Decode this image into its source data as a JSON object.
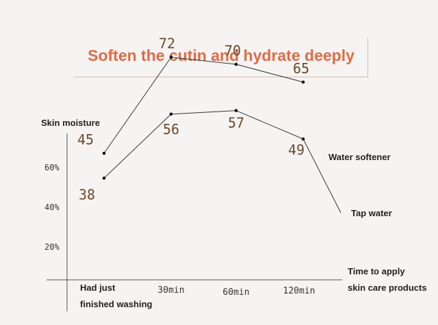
{
  "chart_data": {
    "type": "line",
    "title": "Soften the cutin and hydrate deeply",
    "ylabel": "Skin moisture",
    "xlabel": "Time to apply skin care products",
    "xlabel_lines": [
      "Time to apply",
      "skin care products"
    ],
    "categories": [
      "Had just finished washing",
      "30min",
      "60min",
      "120min"
    ],
    "first_category_lines": [
      "Had just",
      "finished washing"
    ],
    "y_ticks": [
      "20%",
      "40%",
      "60%"
    ],
    "series": [
      {
        "name": "Water softener",
        "values": [
          45,
          72,
          70,
          65
        ]
      },
      {
        "name": "Tap water",
        "values": [
          38,
          56,
          57,
          49
        ]
      }
    ],
    "colors": {
      "title": "#e26b43",
      "axis": "#444444",
      "label": "#6b4a2a",
      "line": "#333333"
    }
  }
}
